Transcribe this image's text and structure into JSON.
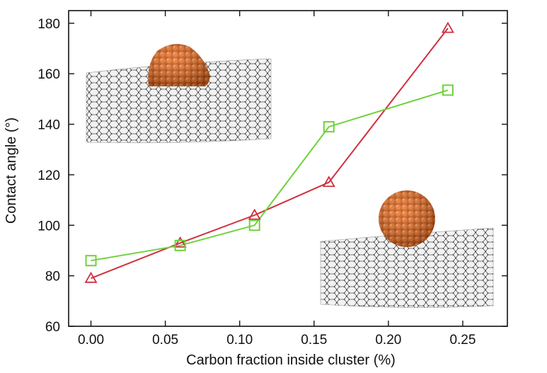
{
  "chart_data": {
    "type": "line",
    "title": "",
    "xlabel": "Carbon fraction inside cluster (%)",
    "ylabel": "Contact angle (°)",
    "xlim": [
      -0.015,
      0.28
    ],
    "ylim": [
      60,
      185
    ],
    "xticks": [
      0.0,
      0.05,
      0.1,
      0.15,
      0.2,
      0.25
    ],
    "xtick_labels": [
      "0.00",
      "0.05",
      "0.10",
      "0.15",
      "0.20",
      "0.25"
    ],
    "yticks": [
      60,
      80,
      100,
      120,
      140,
      160,
      180
    ],
    "ytick_labels": [
      "60",
      "80",
      "100",
      "120",
      "140",
      "160",
      "180"
    ],
    "grid": false,
    "series": [
      {
        "name": "triangles",
        "marker": "triangle",
        "color": "#d0303f",
        "x": [
          0.0,
          0.06,
          0.11,
          0.16,
          0.24
        ],
        "y": [
          79,
          93,
          104,
          117,
          178
        ]
      },
      {
        "name": "squares",
        "marker": "square",
        "color": "#6fd23a",
        "x": [
          0.0,
          0.06,
          0.11,
          0.16,
          0.24
        ],
        "y": [
          86,
          92,
          100,
          139,
          153.5
        ]
      }
    ],
    "insets": [
      {
        "description": "orange nanodroplet spreading on graphene sheet",
        "position": "top-left"
      },
      {
        "description": "spherical orange nanodroplet on graphene sheet",
        "position": "bottom-right"
      }
    ]
  }
}
